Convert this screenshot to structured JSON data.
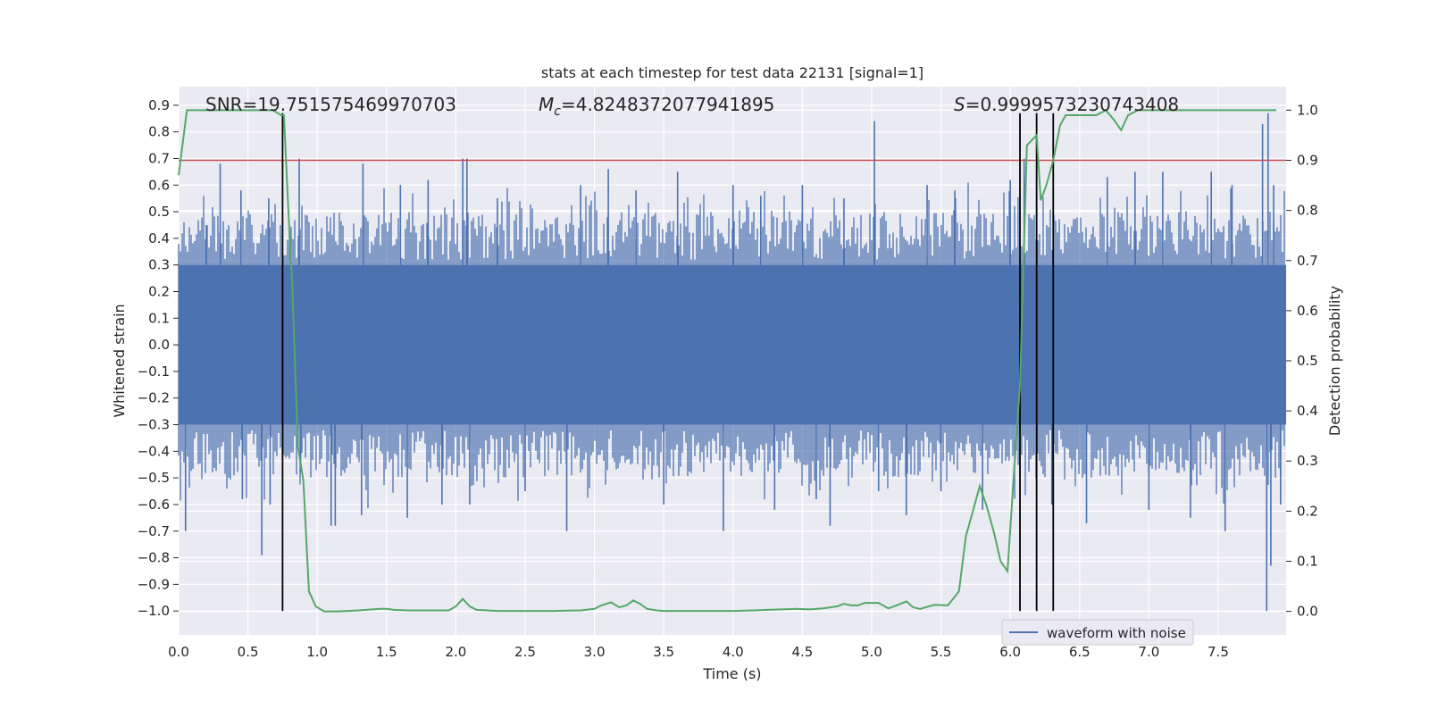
{
  "chart_data": {
    "type": "line",
    "title": "stats at each timestep for test data 22131 [signal=1]",
    "xlabel": "Time (s)",
    "ylabel_left": "Whitened strain",
    "ylabel_right": "Detection probability",
    "xlim": [
      0.0,
      7.99
    ],
    "ylim_left": [
      -1.09,
      0.97
    ],
    "ylim_right": [
      -0.047,
      1.047
    ],
    "x_ticks": [
      "0.0",
      "0.5",
      "1.0",
      "1.5",
      "2.0",
      "2.5",
      "3.0",
      "3.5",
      "4.0",
      "4.5",
      "5.0",
      "5.5",
      "6.0",
      "6.5",
      "7.0",
      "7.5"
    ],
    "y_ticks_left": [
      "0.9",
      "0.8",
      "0.7",
      "0.6",
      "0.5",
      "0.4",
      "0.3",
      "0.2",
      "0.1",
      "0.0",
      "−0.1",
      "−0.2",
      "−0.3",
      "−0.4",
      "−0.5",
      "−0.6",
      "−0.7",
      "−0.8",
      "−0.9",
      "−1.0"
    ],
    "y_ticks_right": [
      "1.0",
      "0.9",
      "0.8",
      "0.7",
      "0.6",
      "0.5",
      "0.4",
      "0.3",
      "0.2",
      "0.1",
      "0.0"
    ],
    "grid": true,
    "legend": {
      "placement": "lower-right",
      "entries": [
        {
          "label": "waveform with noise",
          "color": "#4c72b0"
        }
      ]
    },
    "annotations": {
      "snr": "SNR=19.751575469970703",
      "mc_sym": "M",
      "mc_sub": "c",
      "mc_val": "=4.8248372077941895",
      "s_sym": "S",
      "s_val": "=0.9999573230743408"
    },
    "threshold": {
      "value_right": 0.9,
      "color": "#c44e52"
    },
    "vertical_markers_x": [
      0.75,
      6.07,
      6.19,
      6.31
    ],
    "vertical_marker_range_left": [
      -1.0,
      0.87
    ],
    "series": [
      {
        "name": "waveform with noise",
        "axis": "left",
        "color": "#4c72b0",
        "style": "dense-noise",
        "core_amplitude": 0.3,
        "spikes": [
          [
            0.05,
            -0.7
          ],
          [
            0.2,
            0.45
          ],
          [
            0.3,
            0.68
          ],
          [
            0.45,
            0.58
          ],
          [
            0.46,
            -0.58
          ],
          [
            0.6,
            -0.79
          ],
          [
            0.65,
            0.55
          ],
          [
            0.66,
            -0.6
          ],
          [
            0.87,
            0.7
          ],
          [
            0.88,
            -0.48
          ],
          [
            1.1,
            -0.68
          ],
          [
            1.13,
            -0.68
          ],
          [
            1.33,
            0.68
          ],
          [
            1.32,
            -0.64
          ],
          [
            1.6,
            0.6
          ],
          [
            1.65,
            -0.65
          ],
          [
            1.8,
            0.62
          ],
          [
            1.9,
            -0.6
          ],
          [
            2.05,
            0.7
          ],
          [
            2.08,
            0.7
          ],
          [
            2.1,
            -0.6
          ],
          [
            2.3,
            0.55
          ],
          [
            2.5,
            -0.55
          ],
          [
            2.8,
            -0.7
          ],
          [
            2.9,
            0.6
          ],
          [
            3.1,
            0.66
          ],
          [
            3.3,
            0.58
          ],
          [
            3.5,
            -0.6
          ],
          [
            3.6,
            0.65
          ],
          [
            3.93,
            -0.7
          ],
          [
            4.0,
            0.6
          ],
          [
            4.2,
            0.56
          ],
          [
            4.3,
            -0.62
          ],
          [
            4.5,
            0.6
          ],
          [
            4.6,
            -0.58
          ],
          [
            4.7,
            -0.68
          ],
          [
            4.8,
            0.55
          ],
          [
            5.02,
            0.84
          ],
          [
            5.05,
            -0.55
          ],
          [
            5.25,
            -0.64
          ],
          [
            5.4,
            0.6
          ],
          [
            5.5,
            -0.55
          ],
          [
            5.6,
            0.58
          ],
          [
            5.8,
            -0.62
          ],
          [
            6.0,
            0.62
          ],
          [
            6.1,
            0.7
          ],
          [
            6.3,
            -0.6
          ],
          [
            6.55,
            -0.67
          ],
          [
            6.7,
            0.63
          ],
          [
            6.9,
            0.65
          ],
          [
            7.0,
            -0.62
          ],
          [
            7.1,
            0.65
          ],
          [
            7.3,
            -0.65
          ],
          [
            7.45,
            0.65
          ],
          [
            7.55,
            -0.7
          ],
          [
            7.6,
            0.6
          ],
          [
            7.82,
            0.83
          ],
          [
            7.86,
            0.87
          ],
          [
            7.85,
            -1.0
          ],
          [
            7.88,
            -0.83
          ],
          [
            7.9,
            0.6
          ],
          [
            7.95,
            -0.6
          ]
        ]
      },
      {
        "name": "",
        "axis": "right",
        "color": "#55a868",
        "x": [
          0.0,
          0.06,
          0.12,
          0.2,
          0.3,
          0.4,
          0.5,
          0.6,
          0.68,
          0.74,
          0.76,
          0.8,
          0.82,
          0.86,
          0.9,
          0.94,
          0.99,
          1.05,
          1.15,
          1.3,
          1.45,
          1.5,
          1.55,
          1.65,
          1.8,
          1.95,
          2.0,
          2.05,
          2.1,
          2.15,
          2.3,
          2.5,
          2.7,
          2.9,
          3.0,
          3.05,
          3.12,
          3.18,
          3.23,
          3.28,
          3.33,
          3.38,
          3.45,
          3.5,
          3.6,
          3.8,
          4.0,
          4.15,
          4.25,
          4.35,
          4.45,
          4.55,
          4.65,
          4.75,
          4.8,
          4.85,
          4.9,
          4.95,
          5.05,
          5.12,
          5.18,
          5.25,
          5.3,
          5.35,
          5.45,
          5.55,
          5.63,
          5.68,
          5.73,
          5.78,
          5.83,
          5.88,
          5.93,
          5.98,
          6.02,
          6.07,
          6.12,
          6.19,
          6.22,
          6.26,
          6.31,
          6.36,
          6.4,
          6.48,
          6.55,
          6.62,
          6.69,
          6.75,
          6.8,
          6.85,
          6.92,
          7.0,
          7.2,
          7.5,
          7.8,
          7.92
        ],
        "y": [
          0.87,
          1.0,
          1.0,
          1.0,
          1.0,
          1.0,
          1.0,
          1.0,
          1.0,
          0.99,
          0.99,
          0.75,
          0.65,
          0.33,
          0.26,
          0.04,
          0.01,
          0.0,
          0.0,
          0.002,
          0.005,
          0.005,
          0.003,
          0.002,
          0.002,
          0.002,
          0.01,
          0.025,
          0.01,
          0.003,
          0.001,
          0.001,
          0.001,
          0.002,
          0.005,
          0.012,
          0.018,
          0.008,
          0.012,
          0.022,
          0.015,
          0.005,
          0.002,
          0.001,
          0.001,
          0.001,
          0.001,
          0.002,
          0.003,
          0.004,
          0.005,
          0.004,
          0.006,
          0.01,
          0.015,
          0.012,
          0.012,
          0.017,
          0.017,
          0.006,
          0.012,
          0.02,
          0.008,
          0.005,
          0.013,
          0.012,
          0.04,
          0.15,
          0.2,
          0.25,
          0.21,
          0.16,
          0.1,
          0.08,
          0.25,
          0.45,
          0.93,
          0.95,
          0.82,
          0.85,
          0.9,
          0.97,
          0.99,
          0.99,
          0.99,
          0.99,
          1.0,
          0.98,
          0.96,
          0.99,
          1.0,
          1.0,
          1.0,
          1.0,
          1.0,
          1.0
        ]
      }
    ]
  }
}
